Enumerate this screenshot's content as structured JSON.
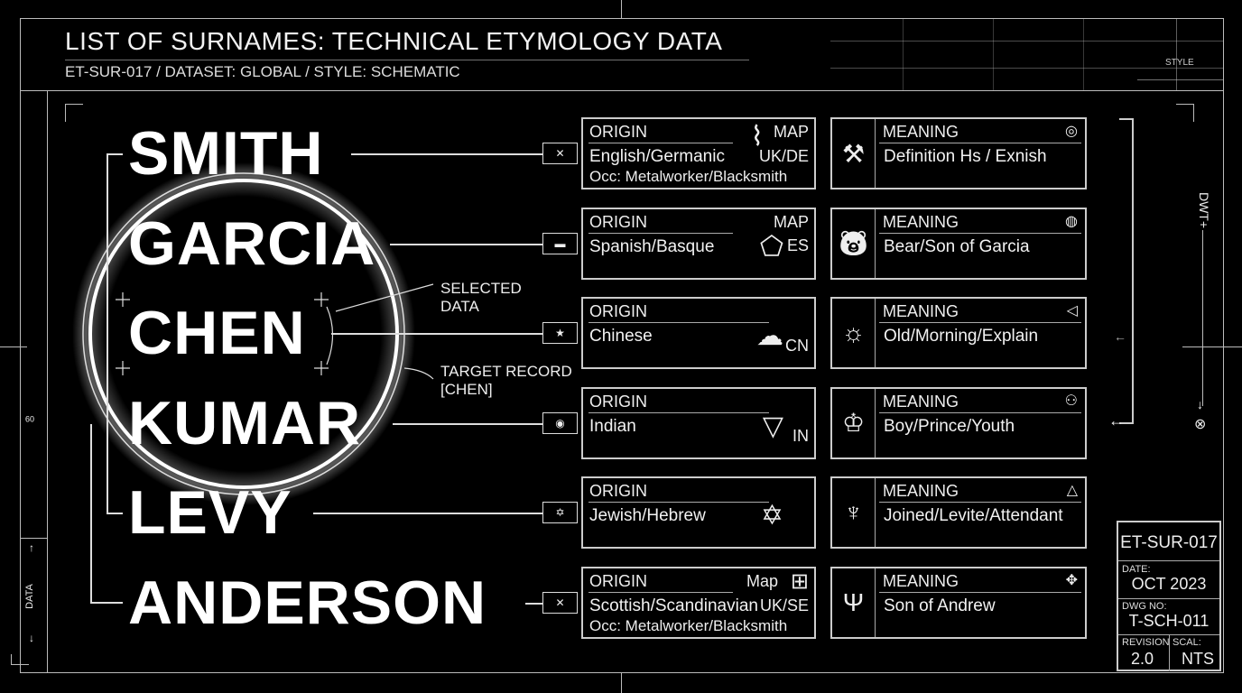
{
  "header": {
    "title": "LIST OF SURNAMES: TECHNICAL ETYMOLOGY DATA",
    "subtitle": "ET-SUR-017 / DATASET: GLOBAL / STYLE: SCHEMATIC",
    "style_label": "STYLE"
  },
  "surnames": [
    {
      "name": "SMITH",
      "flag": "uk-flag-icon",
      "origin_label": "ORIGIN",
      "map_label": "MAP",
      "origin": "English/Germanic",
      "region": "UK/DE",
      "occupation": "Occ: Metalworker/Blacksmith",
      "map_icon": "uk-map-icon",
      "meaning_label": "MEANING",
      "meaning": "Definition Hs / Exnish",
      "meaning_icon": "hammer-icon"
    },
    {
      "name": "GARCIA",
      "flag": "spain-flag-icon",
      "origin_label": "ORIGIN",
      "map_label": "MAP",
      "origin": "Spanish/Basque",
      "region": "ES",
      "map_icon": "spain-map-icon",
      "meaning_label": "MEANING",
      "meaning": "Bear/Son of Garcia",
      "meaning_icon": "bear-icon"
    },
    {
      "name": "CHEN",
      "flag": "china-flag-icon",
      "origin_label": "ORIGIN",
      "origin": "Chinese",
      "region": "CN",
      "map_icon": "china-map-icon",
      "meaning_label": "MEANING",
      "meaning": "Old/Morning/Explain",
      "meaning_icon": "lightbulb-icon"
    },
    {
      "name": "KUMAR",
      "flag": "india-flag-icon",
      "origin_label": "ORIGIN",
      "origin": "Indian",
      "region": "IN",
      "map_icon": "india-map-icon",
      "meaning_label": "MEANING",
      "meaning": "Boy/Prince/Youth",
      "meaning_icon": "prince-icon"
    },
    {
      "name": "LEVY",
      "flag": "israel-flag-icon",
      "origin_label": "ORIGIN",
      "origin": "Jewish/Hebrew",
      "map_icon": "star-of-david-icon",
      "meaning_label": "MEANING",
      "meaning": "Joined/Levite/Attendant",
      "meaning_icon": "angel-icon"
    },
    {
      "name": "ANDERSON",
      "flag": "scotland-flag-icon",
      "origin_label": "ORIGIN",
      "map_label": "Map",
      "origin": "Scottish/Scandinavian",
      "region": "UK/SE",
      "occupation": "Occ: Metalworker/Blacksmith",
      "map_icon": "grid-map-icon",
      "meaning_label": "MEANING",
      "meaning": "Son of Andrew",
      "meaning_icon": "trident-icon"
    }
  ],
  "annotations": {
    "selected": "SELECTED\nDATA",
    "target": "TARGET RECORD\n[CHEN]"
  },
  "side": {
    "left_label": "DATA",
    "left_tick": "09",
    "right_label": "DWT+"
  },
  "title_block": {
    "id": "ET-SUR-017",
    "date_label": "DATE:",
    "date": "OCT 2023",
    "dwg_label": "DWG NO:",
    "dwg": "T-SCH-011",
    "revision_label": "REVISION",
    "revision": "2.0",
    "scale_label": "SCAL:",
    "scale": "NTS"
  }
}
